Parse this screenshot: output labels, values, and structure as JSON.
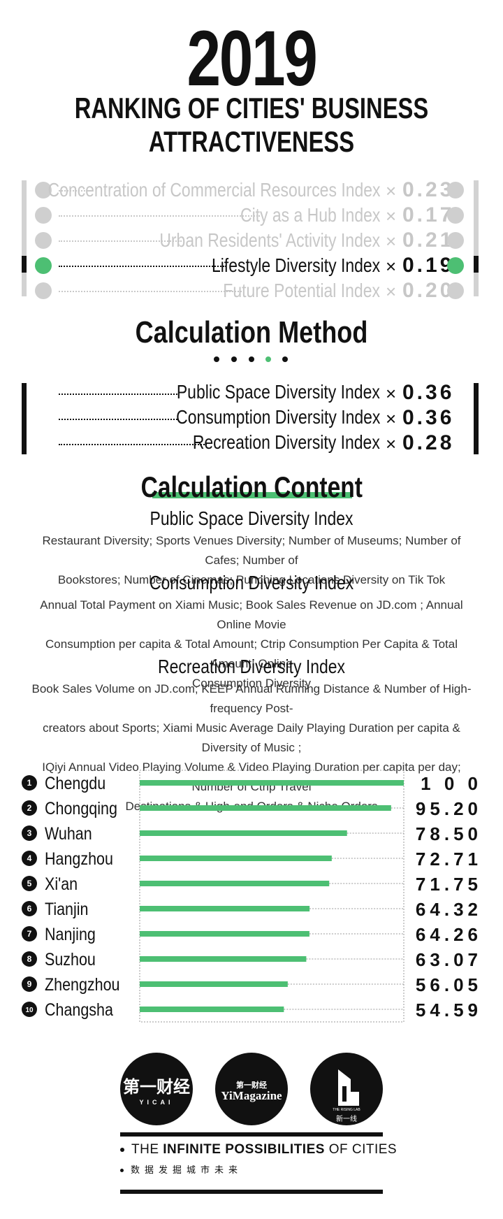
{
  "header": {
    "year": "2019",
    "title_line1": "RANKING OF CITIES' BUSINESS",
    "title_line2": "ATTRACTIVENESS"
  },
  "indices": [
    {
      "label": "Concentration of Commercial Resources Index",
      "multiplier": "×",
      "weight": "0.23",
      "active": false
    },
    {
      "label": "City as a Hub Index",
      "multiplier": "×",
      "weight": "0.17",
      "active": false
    },
    {
      "label": "Urban Residents' Activity Index",
      "multiplier": "×",
      "weight": "0.21",
      "active": false
    },
    {
      "label": "Lifestyle Diversity Index",
      "multiplier": "×",
      "weight": "0.19",
      "active": true
    },
    {
      "label": "Future Potential Index",
      "multiplier": "×",
      "weight": "0.20",
      "active": false
    }
  ],
  "calculation_method": {
    "title": "Calculation Method",
    "active_step": 4,
    "step_count": 5,
    "items": [
      {
        "label": "Public Space Diversity Index",
        "multiplier": "×",
        "weight": "0.36"
      },
      {
        "label": "Consumption Diversity Index",
        "multiplier": "×",
        "weight": "0.36"
      },
      {
        "label": "Recreation Diversity Index",
        "multiplier": "×",
        "weight": "0.28"
      }
    ]
  },
  "calculation_content": {
    "title": "Calculation Content",
    "sections": [
      {
        "heading": "Public Space Diversity Index",
        "lines": [
          "Restaurant Diversity; Sports Venues Diversity; Number of Museums; Number of Cafes; Number of",
          "Bookstores; Number of Cinemas; Punching Locations Diversity on Tik Tok"
        ]
      },
      {
        "heading": "Consumption Diversity Index",
        "lines": [
          "Annual Total Payment on Xiami Music; Book Sales Revenue on JD.com ; Annual Online Movie",
          "Consumption per capita & Total Amount; Ctrip Consumption Per Capita & Total Amount; Online",
          "Consumption Diversity"
        ]
      },
      {
        "heading": "Recreation Diversity Index",
        "lines": [
          "Book Sales Volume on JD.com; KEEP Annual Running Distance & Number of High-frequency Post-",
          "creators about Sports; Xiami Music Average Daily Playing Duration per capita & Diversity of Music ;",
          "IQiyi Annual Video Playing Volume & Video Playing Duration per capita per day; Number of Ctrip Travel",
          "Destinations & High-end Orders & Niche Orders"
        ]
      }
    ]
  },
  "chart_data": {
    "type": "bar",
    "orientation": "horizontal",
    "categories": [
      "Chengdu",
      "Chongqing",
      "Wuhan",
      "Hangzhou",
      "Xi'an",
      "Tianjin",
      "Nanjing",
      "Suzhou",
      "Zhengzhou",
      "Changsha"
    ],
    "ranks": [
      "1",
      "2",
      "3",
      "4",
      "5",
      "6",
      "7",
      "8",
      "9",
      "10"
    ],
    "values": [
      100,
      95.2,
      78.5,
      72.71,
      71.75,
      64.32,
      64.26,
      63.07,
      56.05,
      54.59
    ],
    "value_labels": [
      "1 0 0",
      "95.20",
      "78.50",
      "72.71",
      "71.75",
      "64.32",
      "64.26",
      "63.07",
      "56.05",
      "54.59"
    ],
    "xlim": [
      0,
      100
    ],
    "bar_color": "#4dbf73",
    "grid": false
  },
  "logos": [
    {
      "name": "yicai-logo",
      "text_main": "第一财经",
      "text_sub": "YICAI"
    },
    {
      "name": "yimagazine-logo",
      "text_main": "YiMagazine",
      "text_sub": "第一财经"
    },
    {
      "name": "xinyixian-logo",
      "text_main": "新一线",
      "text_sub": "THE RISING LAB"
    }
  ],
  "footer": {
    "tagline_pre": "THE ",
    "tagline_bold": "INFINITE POSSIBILITIES",
    "tagline_post": " OF CITIES",
    "tagline_cn": "数据发掘城市未来"
  },
  "colors": {
    "accent": "#4dbf73",
    "muted": "#c7c7c7",
    "text": "#111111"
  }
}
